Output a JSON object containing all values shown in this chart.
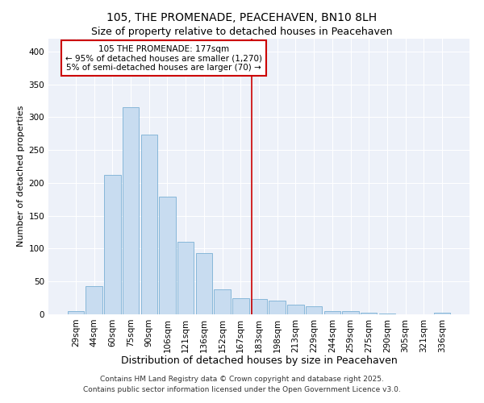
{
  "title": "105, THE PROMENADE, PEACEHAVEN, BN10 8LH",
  "subtitle": "Size of property relative to detached houses in Peacehaven",
  "xlabel": "Distribution of detached houses by size in Peacehaven",
  "ylabel": "Number of detached properties",
  "bar_labels": [
    "29sqm",
    "44sqm",
    "60sqm",
    "75sqm",
    "90sqm",
    "106sqm",
    "121sqm",
    "136sqm",
    "152sqm",
    "167sqm",
    "183sqm",
    "198sqm",
    "213sqm",
    "229sqm",
    "244sqm",
    "259sqm",
    "275sqm",
    "290sqm",
    "305sqm",
    "321sqm",
    "336sqm"
  ],
  "bar_values": [
    5,
    43,
    212,
    315,
    273,
    179,
    110,
    93,
    38,
    24,
    23,
    21,
    15,
    12,
    5,
    5,
    2,
    1,
    0,
    0,
    2
  ],
  "bar_color": "#c8dcf0",
  "bar_edge_color": "#7ab0d4",
  "vline_color": "#cc0000",
  "annotation_title": "105 THE PROMENADE: 177sqm",
  "annotation_line1": "← 95% of detached houses are smaller (1,270)",
  "annotation_line2": "5% of semi-detached houses are larger (70) →",
  "ylim": [
    0,
    420
  ],
  "yticks": [
    0,
    50,
    100,
    150,
    200,
    250,
    300,
    350,
    400
  ],
  "footnote1": "Contains HM Land Registry data © Crown copyright and database right 2025.",
  "footnote2": "Contains public sector information licensed under the Open Government Licence v3.0.",
  "background_color": "#edf1f9",
  "grid_color": "#ffffff",
  "title_fontsize": 10,
  "subtitle_fontsize": 9,
  "xlabel_fontsize": 9,
  "ylabel_fontsize": 8,
  "tick_fontsize": 7.5,
  "annot_fontsize": 7.5,
  "footnote_fontsize": 6.5
}
